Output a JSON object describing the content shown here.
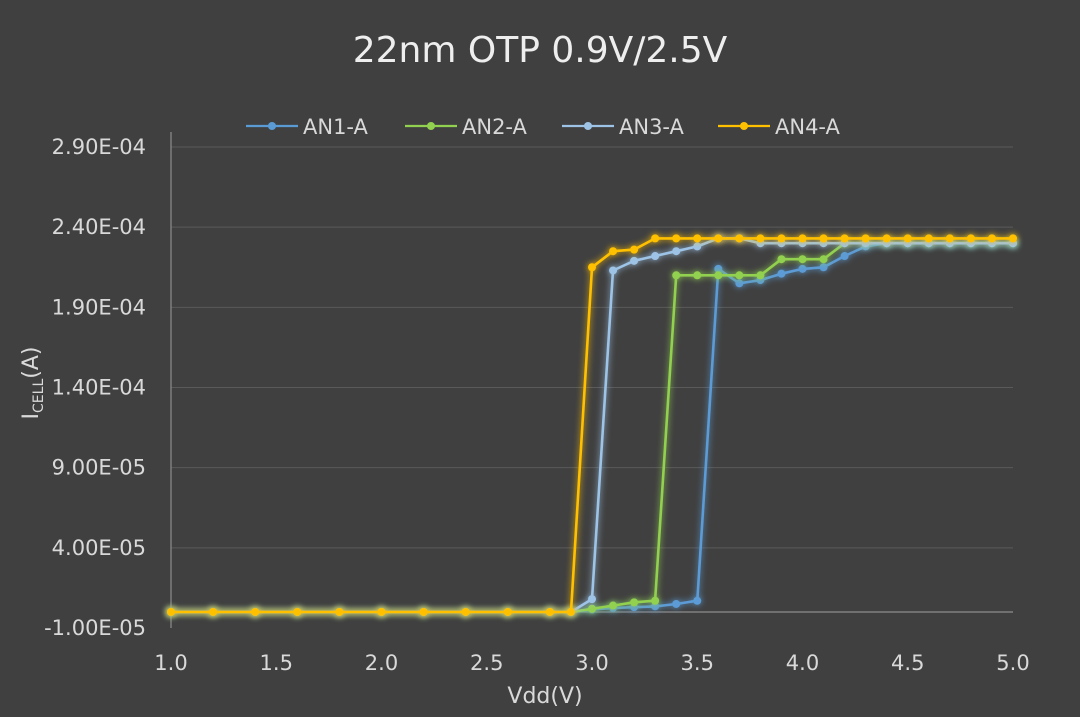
{
  "chart_data": {
    "type": "line",
    "title": "22nm OTP 0.9V/2.5V",
    "xlabel": "Vdd(V)",
    "ylabel": {
      "main": "I",
      "sub": "CELL",
      "rest": "(A)"
    },
    "xlim": [
      1.0,
      5.0
    ],
    "ylim": [
      -1e-05,
      0.00029
    ],
    "x_ticks": [
      1.0,
      1.5,
      2.0,
      2.5,
      3.0,
      3.5,
      4.0,
      4.5,
      5.0
    ],
    "x_tick_labels": [
      "1.0",
      "1.5",
      "2.0",
      "2.5",
      "3.0",
      "3.5",
      "4.0",
      "4.5",
      "5.0"
    ],
    "y_ticks": [
      -1e-05,
      4e-05,
      9e-05,
      0.00014,
      0.00019,
      0.00024,
      0.00029
    ],
    "y_tick_labels": [
      "-1.00E-05",
      "4.00E-05",
      "9.00E-05",
      "1.40E-04",
      "1.90E-04",
      "2.40E-04",
      "2.90E-04"
    ],
    "grid": true,
    "legend_position": "top",
    "series": [
      {
        "name": "AN1-A",
        "color": "#5b9bd5",
        "x": [
          1.0,
          1.2,
          1.4,
          1.6,
          1.8,
          2.0,
          2.2,
          2.4,
          2.6,
          2.8,
          2.9,
          3.0,
          3.1,
          3.2,
          3.3,
          3.4,
          3.5,
          3.6,
          3.7,
          3.8,
          3.9,
          4.0,
          4.1,
          4.2,
          4.3,
          4.4,
          4.5,
          4.6,
          4.7,
          4.8,
          4.9,
          5.0
        ],
        "y": [
          0,
          0,
          0,
          0,
          0,
          0,
          0,
          0,
          0,
          0,
          0,
          1.5e-06,
          2.5e-06,
          3e-06,
          3.5e-06,
          5e-06,
          7e-06,
          0.000214,
          0.000205,
          0.000207,
          0.000211,
          0.000214,
          0.000215,
          0.000222,
          0.000228,
          0.00023,
          0.00023,
          0.00023,
          0.00023,
          0.00023,
          0.00023,
          0.00023
        ]
      },
      {
        "name": "AN2-A",
        "color": "#92d050",
        "x": [
          1.0,
          1.2,
          1.4,
          1.6,
          1.8,
          2.0,
          2.2,
          2.4,
          2.6,
          2.8,
          2.9,
          3.0,
          3.1,
          3.2,
          3.3,
          3.4,
          3.5,
          3.6,
          3.7,
          3.8,
          3.9,
          4.0,
          4.1,
          4.2,
          4.3,
          4.4,
          4.5,
          4.6,
          4.7,
          4.8,
          4.9,
          5.0
        ],
        "y": [
          0,
          0,
          0,
          0,
          0,
          0,
          0,
          0,
          0,
          0,
          0,
          2e-06,
          4e-06,
          6e-06,
          7e-06,
          0.00021,
          0.00021,
          0.00021,
          0.00021,
          0.00021,
          0.00022,
          0.00022,
          0.00022,
          0.00023,
          0.00023,
          0.00023,
          0.00023,
          0.00023,
          0.00023,
          0.00023,
          0.00023,
          0.00023
        ]
      },
      {
        "name": "AN3-A",
        "color": "#9dc3e6",
        "x": [
          1.0,
          1.2,
          1.4,
          1.6,
          1.8,
          2.0,
          2.2,
          2.4,
          2.6,
          2.8,
          2.9,
          3.0,
          3.1,
          3.2,
          3.3,
          3.4,
          3.5,
          3.6,
          3.7,
          3.8,
          3.9,
          4.0,
          4.1,
          4.2,
          4.3,
          4.4,
          4.5,
          4.6,
          4.7,
          4.8,
          4.9,
          5.0
        ],
        "y": [
          0,
          0,
          0,
          0,
          0,
          0,
          0,
          0,
          0,
          0,
          0,
          8e-06,
          0.000213,
          0.000219,
          0.000222,
          0.000225,
          0.000228,
          0.000233,
          0.000233,
          0.00023,
          0.00023,
          0.00023,
          0.00023,
          0.00023,
          0.00023,
          0.00023,
          0.00023,
          0.00023,
          0.00023,
          0.00023,
          0.00023,
          0.00023
        ]
      },
      {
        "name": "AN4-A",
        "color": "#ffc000",
        "x": [
          1.0,
          1.2,
          1.4,
          1.6,
          1.8,
          2.0,
          2.2,
          2.4,
          2.6,
          2.8,
          2.9,
          3.0,
          3.1,
          3.2,
          3.3,
          3.4,
          3.5,
          3.6,
          3.7,
          3.8,
          3.9,
          4.0,
          4.1,
          4.2,
          4.3,
          4.4,
          4.5,
          4.6,
          4.7,
          4.8,
          4.9,
          5.0
        ],
        "y": [
          0,
          0,
          0,
          0,
          0,
          0,
          0,
          0,
          0,
          0,
          0,
          0.000215,
          0.000225,
          0.000226,
          0.000233,
          0.000233,
          0.000233,
          0.000233,
          0.000233,
          0.000233,
          0.000233,
          0.000233,
          0.000233,
          0.000233,
          0.000233,
          0.000233,
          0.000233,
          0.000233,
          0.000233,
          0.000233,
          0.000233,
          0.000233
        ]
      }
    ]
  }
}
